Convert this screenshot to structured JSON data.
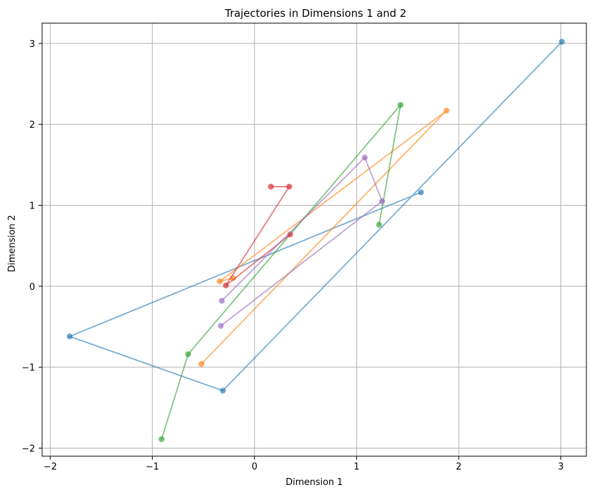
{
  "chart_data": {
    "type": "line",
    "title": "Trajectories in Dimensions 1 and 2",
    "xlabel": "Dimension 1",
    "ylabel": "Dimension 2",
    "xlim": [
      -2.08,
      3.25
    ],
    "ylim": [
      -2.1,
      3.25
    ],
    "xticks": [
      -2,
      -1,
      0,
      1,
      2,
      3
    ],
    "yticks": [
      -2,
      -1,
      0,
      1,
      2,
      3
    ],
    "grid": true,
    "legend": "none",
    "series": [
      {
        "color": "#1f77b4",
        "points": [
          [
            1.63,
            1.16
          ],
          [
            -1.81,
            -0.62
          ],
          [
            -0.31,
            -1.29
          ],
          [
            3.01,
            3.02
          ]
        ]
      },
      {
        "color": "#ff7f0e",
        "points": [
          [
            -0.21,
            0.1
          ],
          [
            -0.34,
            0.06
          ],
          [
            1.88,
            2.17
          ],
          [
            -0.52,
            -0.96
          ]
        ]
      },
      {
        "color": "#2ca02c",
        "points": [
          [
            1.22,
            0.76
          ],
          [
            1.43,
            2.24
          ],
          [
            -0.65,
            -0.84
          ],
          [
            -0.91,
            -1.89
          ]
        ]
      },
      {
        "color": "#d62728",
        "points": [
          [
            0.35,
            0.64
          ],
          [
            -0.28,
            0.01
          ],
          [
            0.34,
            1.23
          ],
          [
            0.16,
            1.23
          ]
        ]
      },
      {
        "color": "#9467bd",
        "points": [
          [
            -0.33,
            -0.49
          ],
          [
            1.25,
            1.05
          ],
          [
            1.08,
            1.59
          ],
          [
            -0.32,
            -0.18
          ]
        ]
      }
    ]
  }
}
